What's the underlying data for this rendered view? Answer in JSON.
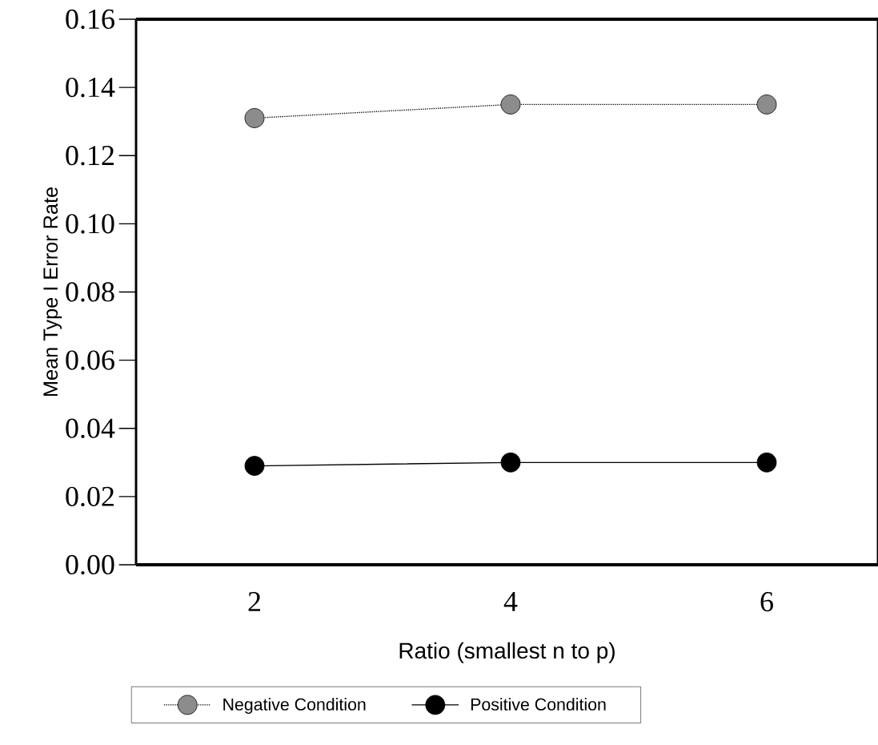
{
  "chart_data": {
    "type": "line",
    "xlabel": "Ratio (smallest n to p)",
    "ylabel": "Mean Type I Error Rate",
    "categories": [
      "2",
      "4",
      "6"
    ],
    "series": [
      {
        "name": "Negative Condition",
        "color": "#8c8c8c",
        "line_style": "dotted",
        "values": [
          0.131,
          0.135,
          0.135
        ]
      },
      {
        "name": "Positive Condition",
        "color": "#000000",
        "line_style": "solid",
        "values": [
          0.029,
          0.03,
          0.03
        ]
      }
    ],
    "marker": "circle",
    "legend": "bottom",
    "ylim": [
      0,
      0.16
    ],
    "yticks": [
      {
        "value": 0,
        "label": "0.00"
      },
      {
        "value": 0.02,
        "label": "0.02"
      },
      {
        "value": 0.04,
        "label": "0.04"
      },
      {
        "value": 0.06,
        "label": "0.06"
      },
      {
        "value": 0.08,
        "label": "0.08"
      },
      {
        "value": 0.1,
        "label": "0.10"
      },
      {
        "value": 0.12,
        "label": "0.12"
      },
      {
        "value": 0.14,
        "label": "0.14"
      },
      {
        "value": 0.16,
        "label": "0.16"
      }
    ]
  }
}
